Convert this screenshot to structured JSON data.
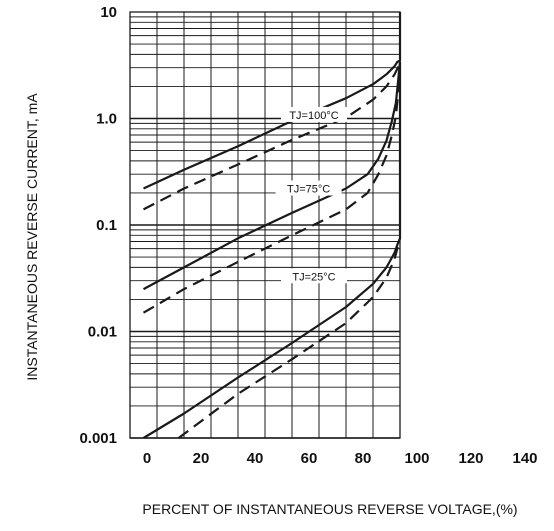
{
  "chart_data": {
    "type": "line",
    "xlabel": "PERCENT OF INSTANTANEOUS REVERSE VOLTAGE,(%)",
    "ylabel": "INSTANTANEOUS REVERSE CURRENT, mA",
    "xlim": [
      0,
      140
    ],
    "ylim": [
      0.001,
      10
    ],
    "yscale": "log",
    "grid": true,
    "x_ticks": [
      0,
      20,
      40,
      60,
      80,
      100,
      120,
      140
    ],
    "x_tick_labels": [
      "0",
      "20",
      "40",
      "60",
      "80",
      "100",
      "120",
      "140"
    ],
    "y_ticks": [
      0.001,
      0.01,
      0.1,
      1.0,
      10
    ],
    "y_tick_labels": [
      "0.001",
      "0.01",
      "0.1",
      "1.0",
      "10"
    ],
    "annotations": [
      {
        "text": "TJ=100°C",
        "x": 80,
        "y": 1.08,
        "curve": "100"
      },
      {
        "text": "TJ=75°C",
        "x": 78,
        "y": 0.22,
        "curve": "75"
      },
      {
        "text": "TJ=25°C",
        "x": 80,
        "y": 0.033,
        "curve": "25"
      }
    ],
    "series": [
      {
        "curve": "100",
        "style": "solid",
        "x": [
          5,
          20,
          40,
          60,
          80,
          90,
          95,
          98,
          99,
          100,
          100
        ],
        "y": [
          0.22,
          0.33,
          0.55,
          0.95,
          1.55,
          2.1,
          2.6,
          3.1,
          3.4,
          3.5,
          10
        ]
      },
      {
        "curve": "100",
        "style": "dashed",
        "x": [
          5,
          20,
          40,
          60,
          80,
          90,
          95,
          98,
          100
        ],
        "y": [
          0.14,
          0.22,
          0.37,
          0.63,
          1.02,
          1.5,
          2.0,
          2.6,
          3.3
        ]
      },
      {
        "curve": "75",
        "style": "solid",
        "x": [
          5,
          20,
          40,
          60,
          80,
          88,
          92,
          95,
          97,
          98.5,
          100
        ],
        "y": [
          0.025,
          0.04,
          0.075,
          0.13,
          0.22,
          0.3,
          0.42,
          0.62,
          0.95,
          1.4,
          3.4
        ]
      },
      {
        "curve": "75",
        "style": "dashed",
        "x": [
          5,
          20,
          40,
          60,
          80,
          88,
          92,
          95,
          97,
          98.5,
          100
        ],
        "y": [
          0.015,
          0.025,
          0.045,
          0.08,
          0.14,
          0.2,
          0.3,
          0.45,
          0.7,
          1.05,
          2.6
        ]
      },
      {
        "curve": "25",
        "style": "solid",
        "x": [
          5,
          20,
          40,
          60,
          80,
          90,
          95,
          98,
          99,
          100,
          100
        ],
        "y": [
          0.001,
          0.0017,
          0.0037,
          0.0078,
          0.017,
          0.028,
          0.04,
          0.055,
          0.065,
          0.075,
          3.4
        ]
      },
      {
        "curve": "25",
        "style": "dashed",
        "x": [
          18,
          40,
          60,
          80,
          90,
          95,
          98,
          100
        ],
        "y": [
          0.001,
          0.0026,
          0.0055,
          0.012,
          0.021,
          0.032,
          0.048,
          0.075
        ]
      }
    ]
  },
  "colors": {
    "line": "#1a1a1a",
    "grid": "#1a1a1a",
    "background": "#ffffff"
  }
}
